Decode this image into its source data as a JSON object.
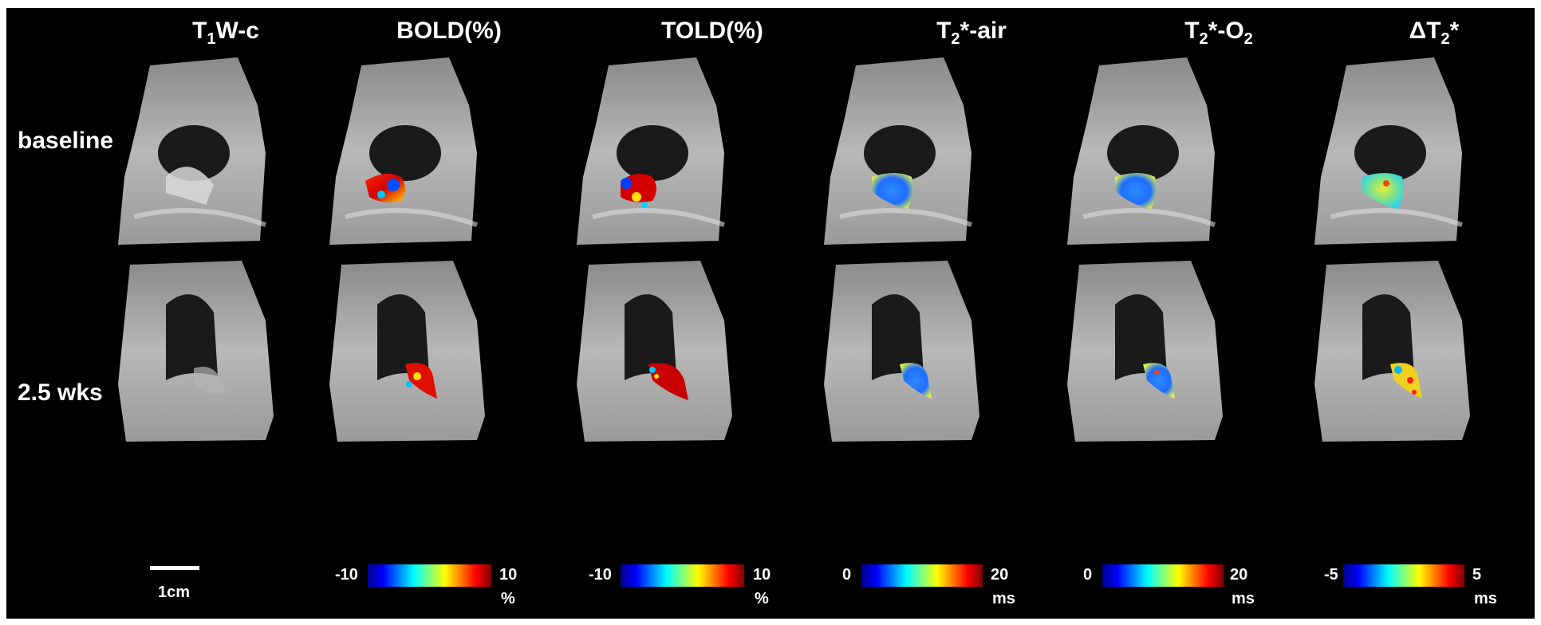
{
  "columns": [
    {
      "key": "t1w",
      "prefix": "T",
      "sub": "1",
      "suffix": "W-c"
    },
    {
      "key": "bold",
      "prefix": "BOLD(%)",
      "sub": "",
      "suffix": ""
    },
    {
      "key": "told",
      "prefix": "TOLD(%)",
      "sub": "",
      "suffix": ""
    },
    {
      "key": "t2air",
      "prefix": "T",
      "sub": "2",
      "suffix": "*-air"
    },
    {
      "key": "t2o2",
      "prefix": "T",
      "sub": "2",
      "suffix": "*-O",
      "sub2": "2"
    },
    {
      "key": "dt2",
      "prefix": "ΔT",
      "sub": "2",
      "suffix": "*"
    }
  ],
  "rows": [
    {
      "label": "baseline"
    },
    {
      "label": "2.5 wks"
    }
  ],
  "scale_bar": {
    "label": "1cm"
  },
  "colorbars": [
    {
      "min": "-10",
      "max": "10",
      "unit": "%",
      "colormap": "jet"
    },
    {
      "min": "-10",
      "max": "10",
      "unit": "%",
      "colormap": "jet"
    },
    {
      "min": "0",
      "max": "20",
      "unit": "ms",
      "colormap": "jet"
    },
    {
      "min": "0",
      "max": "20",
      "unit": "ms",
      "colormap": "jet"
    },
    {
      "min": "-5",
      "max": "5",
      "unit": "ms",
      "colormap": "jet"
    }
  ],
  "colors": {
    "background": "#000000",
    "text": "#ffffff"
  }
}
